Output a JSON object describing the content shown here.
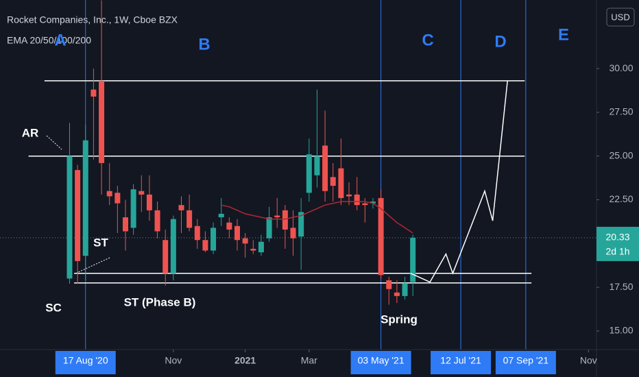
{
  "chart_data": {
    "type": "candlestick",
    "title": "Rocket Companies, Inc., 1W, Cboe BZX",
    "indicator": "EMA 20/50/100/200",
    "currency": "USD",
    "countdown": "2d 1h",
    "up_color": "#26a69a",
    "down_color": "#ef5350",
    "ema_color": "#b22833",
    "x": [
      "2020-08-03",
      "2020-08-10",
      "2020-08-17",
      "2020-08-24",
      "2020-08-31",
      "2020-09-07",
      "2020-09-14",
      "2020-09-21",
      "2020-09-28",
      "2020-10-05",
      "2020-10-12",
      "2020-10-19",
      "2020-10-26",
      "2020-11-02",
      "2020-11-09",
      "2020-11-16",
      "2020-11-23",
      "2020-11-30",
      "2020-12-07",
      "2020-12-14",
      "2020-12-21",
      "2020-12-28",
      "2021-01-04",
      "2021-01-11",
      "2021-01-18",
      "2021-01-25",
      "2021-02-01",
      "2021-02-08",
      "2021-02-15",
      "2021-02-22",
      "2021-03-01",
      "2021-03-08",
      "2021-03-15",
      "2021-03-22",
      "2021-03-29",
      "2021-04-05",
      "2021-04-12",
      "2021-04-19",
      "2021-04-26",
      "2021-05-03",
      "2021-05-10",
      "2021-05-17",
      "2021-05-24",
      "2021-05-31"
    ],
    "open": [
      18.0,
      24.2,
      19.3,
      28.8,
      29.3,
      23.0,
      22.9,
      21.5,
      20.9,
      23.0,
      22.8,
      21.9,
      20.2,
      18.3,
      22.2,
      21.9,
      21.0,
      20.2,
      19.6,
      21.5,
      21.2,
      21.0,
      20.3,
      19.7,
      19.5,
      20.3,
      21.6,
      21.9,
      20.9,
      20.4,
      22.9,
      23.9,
      25.6,
      23.8,
      24.3,
      22.8,
      22.8,
      22.3,
      22.3,
      22.6,
      17.9,
      17.2,
      17.0,
      17.8
    ],
    "high": [
      26.9,
      24.5,
      26.8,
      30.0,
      33.9,
      24.6,
      23.3,
      22.5,
      23.4,
      23.9,
      23.9,
      22.4,
      20.8,
      21.6,
      22.7,
      22.8,
      21.4,
      20.7,
      21.2,
      22.6,
      21.5,
      21.4,
      20.6,
      20.2,
      20.5,
      22.1,
      22.6,
      22.2,
      21.9,
      22.6,
      26.0,
      28.8,
      27.6,
      24.6,
      26.0,
      23.5,
      23.8,
      22.6,
      22.6,
      23.1,
      18.1,
      17.9,
      18.1,
      20.5
    ],
    "low": [
      17.7,
      17.7,
      17.9,
      24.8,
      22.8,
      22.2,
      20.6,
      19.6,
      20.5,
      21.8,
      21.3,
      20.3,
      17.6,
      17.9,
      20.6,
      20.7,
      19.7,
      19.5,
      19.4,
      21.0,
      20.3,
      19.6,
      19.2,
      19.4,
      19.3,
      20.1,
      20.9,
      19.7,
      19.3,
      18.5,
      22.4,
      23.2,
      22.4,
      22.4,
      22.2,
      22.2,
      21.9,
      21.2,
      22.0,
      18.0,
      16.5,
      16.6,
      16.8,
      17.0
    ],
    "close": [
      25.0,
      19.0,
      25.9,
      28.4,
      24.6,
      22.7,
      22.3,
      20.7,
      23.1,
      22.8,
      21.9,
      20.7,
      18.3,
      21.4,
      21.9,
      20.9,
      20.2,
      19.6,
      20.9,
      21.7,
      20.8,
      20.2,
      20.0,
      19.6,
      20.1,
      21.5,
      21.5,
      20.8,
      20.3,
      21.8,
      25.1,
      25.0,
      23.0,
      23.3,
      22.6,
      22.7,
      22.2,
      22.2,
      22.4,
      18.2,
      17.4,
      17.0,
      17.7,
      20.33
    ],
    "ema": [
      null,
      null,
      null,
      null,
      null,
      null,
      null,
      null,
      null,
      null,
      null,
      null,
      null,
      null,
      null,
      null,
      null,
      null,
      null,
      22.2,
      22.1,
      21.9,
      21.7,
      21.6,
      21.5,
      21.4,
      21.4,
      21.4,
      21.5,
      21.6,
      21.8,
      22.0,
      22.2,
      22.3,
      22.4,
      22.4,
      22.4,
      22.4,
      22.3,
      22.0,
      21.6,
      21.2,
      20.9,
      20.6
    ],
    "ylim": [
      13.94,
      33.92
    ],
    "yticks": [
      {
        "value": 15,
        "label": "15.00"
      },
      {
        "value": 17.5,
        "label": "17.50"
      },
      {
        "value": 22.5,
        "label": "22.50"
      },
      {
        "value": 25,
        "label": "25.00"
      },
      {
        "value": 27.5,
        "label": "27.50"
      },
      {
        "value": 30,
        "label": "30.00"
      }
    ],
    "xlim": [
      "2020-06-03",
      "2021-11-08"
    ],
    "xticks": [
      {
        "value": "2020-08-17",
        "label": "17 Aug '20"
      },
      {
        "value": "2020-11-02",
        "label": "Nov"
      },
      {
        "value": "2021-01-04",
        "label": "2021"
      },
      {
        "value": "2021-03-01",
        "label": "Mar"
      },
      {
        "value": "2021-05-03",
        "label": "03 May '21"
      },
      {
        "value": "2021-07-12",
        "label": "12 Jul '21"
      },
      {
        "value": "2021-09-07",
        "label": "07 Sep '21"
      },
      {
        "value": "2021-11-01",
        "label": "Nov"
      }
    ],
    "vlines": [
      "2020-08-17",
      "2021-05-03",
      "2021-07-12",
      "2021-09-07"
    ],
    "levels": [
      {
        "value": 29.3,
        "from": "2020-07-12",
        "to": "2021-09-06"
      },
      {
        "value": 25.0,
        "from": "2020-06-28",
        "to": "2021-09-06"
      },
      {
        "value": 18.3,
        "from": "2020-08-07",
        "to": "2021-09-12"
      },
      {
        "value": 17.75,
        "from": "2020-08-07",
        "to": "2021-09-12"
      }
    ],
    "projection": {
      "x": [
        "2021-05-29",
        "2021-06-15",
        "2021-06-29",
        "2021-07-05",
        "2021-08-02",
        "2021-08-09",
        "2021-08-22"
      ],
      "values": [
        18.3,
        17.8,
        19.4,
        18.3,
        23.0,
        21.3,
        29.3
      ]
    },
    "annotations": [
      "A",
      "B",
      "C",
      "D",
      "E",
      "AR",
      "ST",
      "SC",
      "ST (Phase B)",
      "Spring"
    ]
  }
}
